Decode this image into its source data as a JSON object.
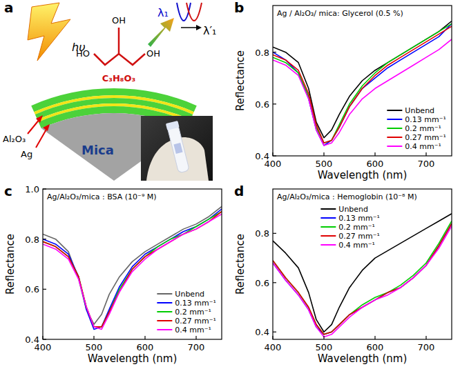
{
  "diagram": {
    "panel": "a",
    "photon": "hυ",
    "hydroxyls": [
      "HO",
      "OH",
      "OH"
    ],
    "formula": "C₃H₈O₃",
    "layers": [
      "Al₂O₃",
      "Ag"
    ],
    "substrate": "Mica",
    "wavelengths": [
      "λ₁",
      "λ′₁"
    ]
  },
  "chart_data": [
    {
      "panel": "b",
      "type": "line",
      "title": "Ag / Al₂O₃/ mica: Glycerol (0.5 %)",
      "x_label": "Wavelength (nm)",
      "y_label": "Reflectance",
      "x": [
        400,
        425,
        450,
        470,
        485,
        500,
        515,
        530,
        550,
        575,
        600,
        625,
        650,
        675,
        700,
        725,
        750
      ],
      "xlim": [
        400,
        750
      ],
      "xticks": [
        400,
        500,
        600,
        700
      ],
      "ylim": [
        0.4,
        0.98
      ],
      "yticks": [
        0.4,
        0.6,
        0.8
      ],
      "legend": "lower right",
      "series": [
        {
          "name": "Unbend",
          "color": "#000000",
          "values": [
            0.82,
            0.8,
            0.76,
            0.66,
            0.53,
            0.47,
            0.5,
            0.56,
            0.63,
            0.69,
            0.73,
            0.76,
            0.79,
            0.82,
            0.85,
            0.88,
            0.92
          ]
        },
        {
          "name": "0.13 mm⁻¹",
          "color": "#0000ff",
          "values": [
            0.8,
            0.77,
            0.72,
            0.62,
            0.5,
            0.44,
            0.46,
            0.51,
            0.59,
            0.66,
            0.7,
            0.74,
            0.77,
            0.8,
            0.83,
            0.86,
            0.91
          ]
        },
        {
          "name": "0.2 mm⁻¹",
          "color": "#00cc00",
          "values": [
            0.78,
            0.76,
            0.72,
            0.63,
            0.51,
            0.45,
            0.46,
            0.52,
            0.6,
            0.67,
            0.72,
            0.76,
            0.79,
            0.82,
            0.85,
            0.88,
            0.91
          ]
        },
        {
          "name": "0.27 mm⁻¹",
          "color": "#e00000",
          "values": [
            0.79,
            0.77,
            0.73,
            0.64,
            0.52,
            0.45,
            0.46,
            0.51,
            0.59,
            0.66,
            0.71,
            0.75,
            0.78,
            0.81,
            0.84,
            0.87,
            0.9
          ]
        },
        {
          "name": "0.4 mm⁻¹",
          "color": "#ff00ff",
          "values": [
            0.77,
            0.75,
            0.71,
            0.62,
            0.5,
            0.44,
            0.45,
            0.49,
            0.56,
            0.62,
            0.66,
            0.69,
            0.72,
            0.75,
            0.78,
            0.81,
            0.85
          ]
        }
      ]
    },
    {
      "panel": "c",
      "type": "line",
      "title": "Ag/Al₂O₃/mica : BSA (10⁻⁹ M)",
      "x_label": "Wavelength (nm)",
      "y_label": "Reflectance",
      "x": [
        400,
        425,
        450,
        470,
        485,
        500,
        515,
        530,
        550,
        575,
        600,
        625,
        650,
        675,
        700,
        725,
        750
      ],
      "xlim": [
        400,
        750
      ],
      "xticks": [
        400,
        500,
        600,
        700
      ],
      "ylim": [
        0.4,
        1.0
      ],
      "yticks": [
        0.4,
        0.6,
        0.8,
        {
          "value": 1.0,
          "label": "1.0"
        }
      ],
      "legend": "lower right",
      "series": [
        {
          "name": "Unbend",
          "color": "#666666",
          "values": [
            0.82,
            0.8,
            0.75,
            0.64,
            0.52,
            0.46,
            0.5,
            0.58,
            0.65,
            0.71,
            0.75,
            0.78,
            0.81,
            0.84,
            0.86,
            0.89,
            0.93
          ]
        },
        {
          "name": "0.13 mm⁻¹",
          "color": "#0000ff",
          "values": [
            0.8,
            0.78,
            0.74,
            0.65,
            0.52,
            0.44,
            0.45,
            0.52,
            0.61,
            0.69,
            0.74,
            0.77,
            0.8,
            0.83,
            0.85,
            0.88,
            0.92
          ]
        },
        {
          "name": "0.2 mm⁻¹",
          "color": "#00cc00",
          "values": [
            0.79,
            0.77,
            0.73,
            0.65,
            0.53,
            0.45,
            0.45,
            0.51,
            0.6,
            0.68,
            0.73,
            0.77,
            0.8,
            0.82,
            0.85,
            0.88,
            0.91
          ]
        },
        {
          "name": "0.27 mm⁻¹",
          "color": "#e00000",
          "values": [
            0.79,
            0.77,
            0.73,
            0.65,
            0.53,
            0.45,
            0.45,
            0.51,
            0.59,
            0.68,
            0.73,
            0.76,
            0.79,
            0.82,
            0.84,
            0.87,
            0.91
          ]
        },
        {
          "name": "0.4 mm⁻¹",
          "color": "#ff00ff",
          "values": [
            0.78,
            0.76,
            0.72,
            0.64,
            0.53,
            0.45,
            0.44,
            0.5,
            0.59,
            0.67,
            0.72,
            0.76,
            0.79,
            0.82,
            0.84,
            0.87,
            0.9
          ]
        }
      ]
    },
    {
      "panel": "d",
      "type": "line",
      "title": "Ag/Al₂O₃/mica : Hemoglobin (10⁻⁸ M)",
      "x_label": "Wavelength (nm)",
      "y_label": "Reflectance",
      "x": [
        400,
        425,
        450,
        470,
        485,
        500,
        515,
        530,
        550,
        575,
        600,
        625,
        650,
        675,
        700,
        725,
        750
      ],
      "xlim": [
        400,
        750
      ],
      "xticks": [
        400,
        500,
        600,
        700
      ],
      "ylim": [
        0.37,
        0.98
      ],
      "yticks": [
        0.4,
        0.6,
        0.8
      ],
      "legend": "upper center",
      "series": [
        {
          "name": "Unbend",
          "color": "#000000",
          "values": [
            0.77,
            0.72,
            0.66,
            0.56,
            0.45,
            0.4,
            0.43,
            0.5,
            0.58,
            0.65,
            0.7,
            0.73,
            0.76,
            0.79,
            0.82,
            0.85,
            0.88
          ]
        },
        {
          "name": "0.13 mm⁻¹",
          "color": "#0000ff",
          "values": [
            0.68,
            0.61,
            0.55,
            0.49,
            0.42,
            0.39,
            0.4,
            0.43,
            0.47,
            0.5,
            0.53,
            0.56,
            0.58,
            0.62,
            0.67,
            0.75,
            0.84
          ]
        },
        {
          "name": "0.2 mm⁻¹",
          "color": "#00cc00",
          "values": [
            0.69,
            0.62,
            0.56,
            0.5,
            0.43,
            0.39,
            0.4,
            0.43,
            0.47,
            0.51,
            0.54,
            0.56,
            0.59,
            0.63,
            0.68,
            0.76,
            0.85
          ]
        },
        {
          "name": "0.27 mm⁻¹",
          "color": "#e00000",
          "values": [
            0.69,
            0.62,
            0.56,
            0.5,
            0.43,
            0.39,
            0.4,
            0.43,
            0.47,
            0.5,
            0.53,
            0.56,
            0.58,
            0.62,
            0.67,
            0.75,
            0.84
          ]
        },
        {
          "name": "0.4 mm⁻¹",
          "color": "#ff00ff",
          "values": [
            0.68,
            0.61,
            0.55,
            0.49,
            0.42,
            0.38,
            0.39,
            0.42,
            0.46,
            0.5,
            0.53,
            0.55,
            0.58,
            0.62,
            0.67,
            0.74,
            0.83
          ]
        }
      ]
    }
  ]
}
